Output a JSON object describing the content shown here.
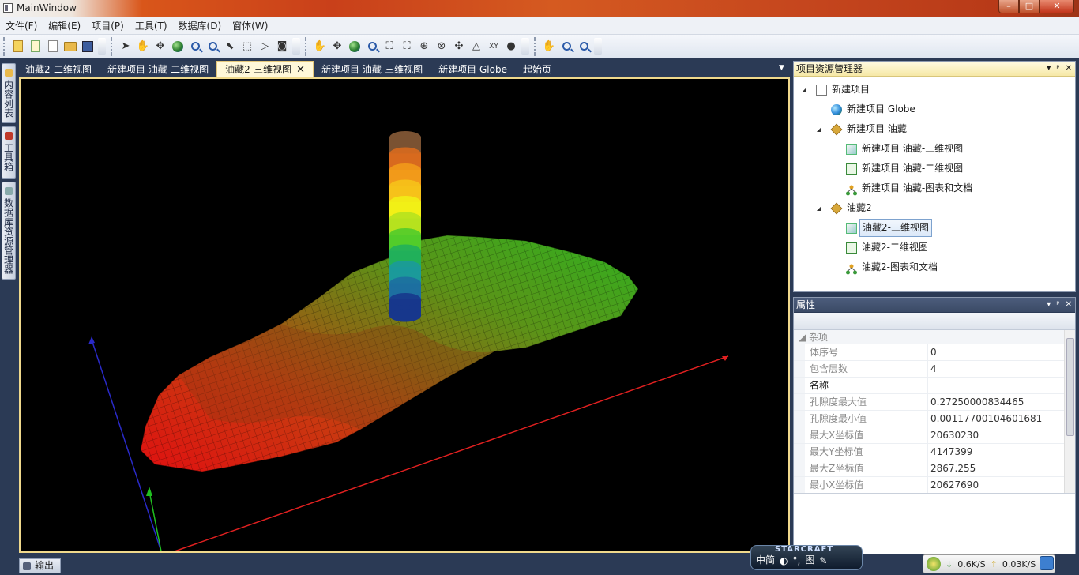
{
  "window": {
    "title": "MainWindow",
    "controls": [
      "–",
      "□",
      "✕"
    ]
  },
  "menu": [
    "文件(F)",
    "编辑(E)",
    "项目(P)",
    "工具(T)",
    "数据库(D)",
    "窗体(W)"
  ],
  "toolbar": {
    "icons_group1": [
      "new-project-icon",
      "open-icon",
      "copy-icon",
      "open-folder-icon",
      "save-icon"
    ],
    "icons_group2": [
      "select-pointer-icon",
      "pan-icon",
      "move-icon",
      "globe-icon",
      "zoom-in-icon",
      "zoom-out-icon",
      "select-icon",
      "zoom-box-icon",
      "play-icon",
      "fullscreen-icon"
    ],
    "icons_group3": [
      "pan-icon",
      "move-icon",
      "globe-icon",
      "zoom-icon",
      "fit-icon",
      "fit-all-icon",
      "center-icon",
      "rotate-icon",
      "orbit-icon",
      "terrain-icon",
      "xy-icon",
      "panda-icon"
    ],
    "icons_group4": [
      "pan-icon",
      "zoom-in-icon",
      "zoom-out-icon"
    ]
  },
  "left_tabs": [
    "内容列表",
    "工具箱",
    "数据库资源管理器"
  ],
  "doc_tabs": [
    {
      "label": "油藏2-二维视图",
      "active": false
    },
    {
      "label": "新建项目 油藏-二维视图",
      "active": false
    },
    {
      "label": "油藏2-三维视图",
      "active": true
    },
    {
      "label": "新建项目 油藏-三维视图",
      "active": false
    },
    {
      "label": "新建项目 Globe",
      "active": false
    },
    {
      "label": "起始页",
      "active": false
    }
  ],
  "tab_close": "✕",
  "project_panel": {
    "title": "项目资源管理器",
    "header_buttons": [
      "▾",
      "ᵖ",
      "✕"
    ],
    "tree": [
      {
        "label": "新建项目",
        "level": 0,
        "icon": "project-page-icon",
        "expanded": true
      },
      {
        "label": "新建项目 Globe",
        "level": 1,
        "icon": "globe-icon"
      },
      {
        "label": "新建项目 油藏",
        "level": 1,
        "icon": "reservoir-icon",
        "expanded": true
      },
      {
        "label": "新建项目 油藏-三维视图",
        "level": 2,
        "icon": "view-3d-icon"
      },
      {
        "label": "新建项目 油藏-二维视图",
        "level": 2,
        "icon": "view-2d-icon"
      },
      {
        "label": "新建项目 油藏-图表和文档",
        "level": 2,
        "icon": "chart-doc-icon"
      },
      {
        "label": "油藏2",
        "level": 1,
        "icon": "reservoir-icon",
        "expanded": true
      },
      {
        "label": "油藏2-三维视图",
        "level": 2,
        "icon": "view-3d-icon",
        "selected": true
      },
      {
        "label": "油藏2-二维视图",
        "level": 2,
        "icon": "view-2d-icon"
      },
      {
        "label": "油藏2-图表和文档",
        "level": 2,
        "icon": "chart-doc-icon"
      }
    ]
  },
  "properties_panel": {
    "title": "属性",
    "category": "杂项",
    "rows": [
      {
        "name": "体序号",
        "value": "0"
      },
      {
        "name": "包含层数",
        "value": "4"
      },
      {
        "name": "名称",
        "value": ""
      },
      {
        "name": "孔隙度最大值",
        "value": "0.27250000834465"
      },
      {
        "name": "孔隙度最小值",
        "value": "0.00117700104601681"
      },
      {
        "name": "最大X坐标值",
        "value": "20630230"
      },
      {
        "name": "最大Y坐标值",
        "value": "4147399"
      },
      {
        "name": "最大Z坐标值",
        "value": "2867.255"
      },
      {
        "name": "最小X坐标值",
        "value": "20627690"
      }
    ]
  },
  "output_tab": "输出",
  "ime": {
    "brand": "STARCRAFT",
    "label": "中简",
    "extra": "图"
  },
  "net": {
    "down": "0.6K/S",
    "up": "0.03K/S"
  },
  "colors": {
    "dock_bg": "#2b3a55",
    "active_tab": "#fff8d9",
    "viewport_bg": "#000000",
    "axis_x": "#e02020",
    "axis_y": "#2a2ac8",
    "axis_z": "#20c020"
  },
  "column_legend_colors": [
    "#7a5232",
    "#d86a1e",
    "#f29a1a",
    "#f6c21a",
    "#f2f016",
    "#b6e21e",
    "#52cc2a",
    "#21b05a",
    "#1b9a9a",
    "#1d6fa0",
    "#17378c"
  ]
}
